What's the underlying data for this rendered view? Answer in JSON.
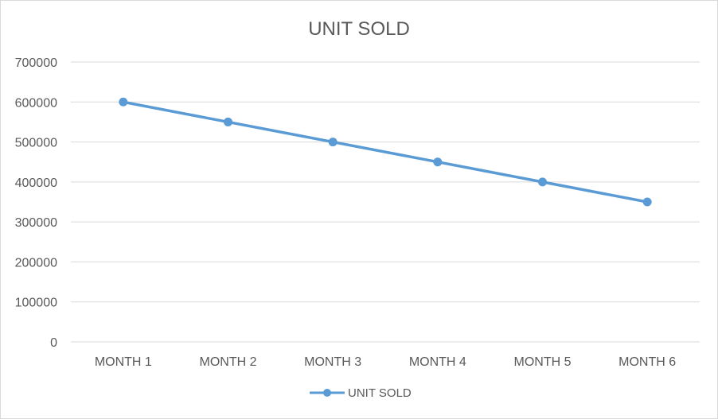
{
  "chart_data": {
    "type": "line",
    "title": "UNIT SOLD",
    "xlabel": "",
    "ylabel": "",
    "categories": [
      "MONTH 1",
      "MONTH 2",
      "MONTH 3",
      "MONTH 4",
      "MONTH 5",
      "MONTH 6"
    ],
    "series": [
      {
        "name": "UNIT SOLD",
        "values": [
          600000,
          550000,
          500000,
          450000,
          400000,
          350000
        ],
        "color": "#5b9bd5"
      }
    ],
    "ylim": [
      0,
      700000
    ],
    "yticks": [
      "0",
      "100000",
      "200000",
      "300000",
      "400000",
      "500000",
      "600000",
      "700000"
    ],
    "grid": true,
    "legend": "bottom",
    "gridColor": "#d9d9d9",
    "textColor": "#595959"
  }
}
